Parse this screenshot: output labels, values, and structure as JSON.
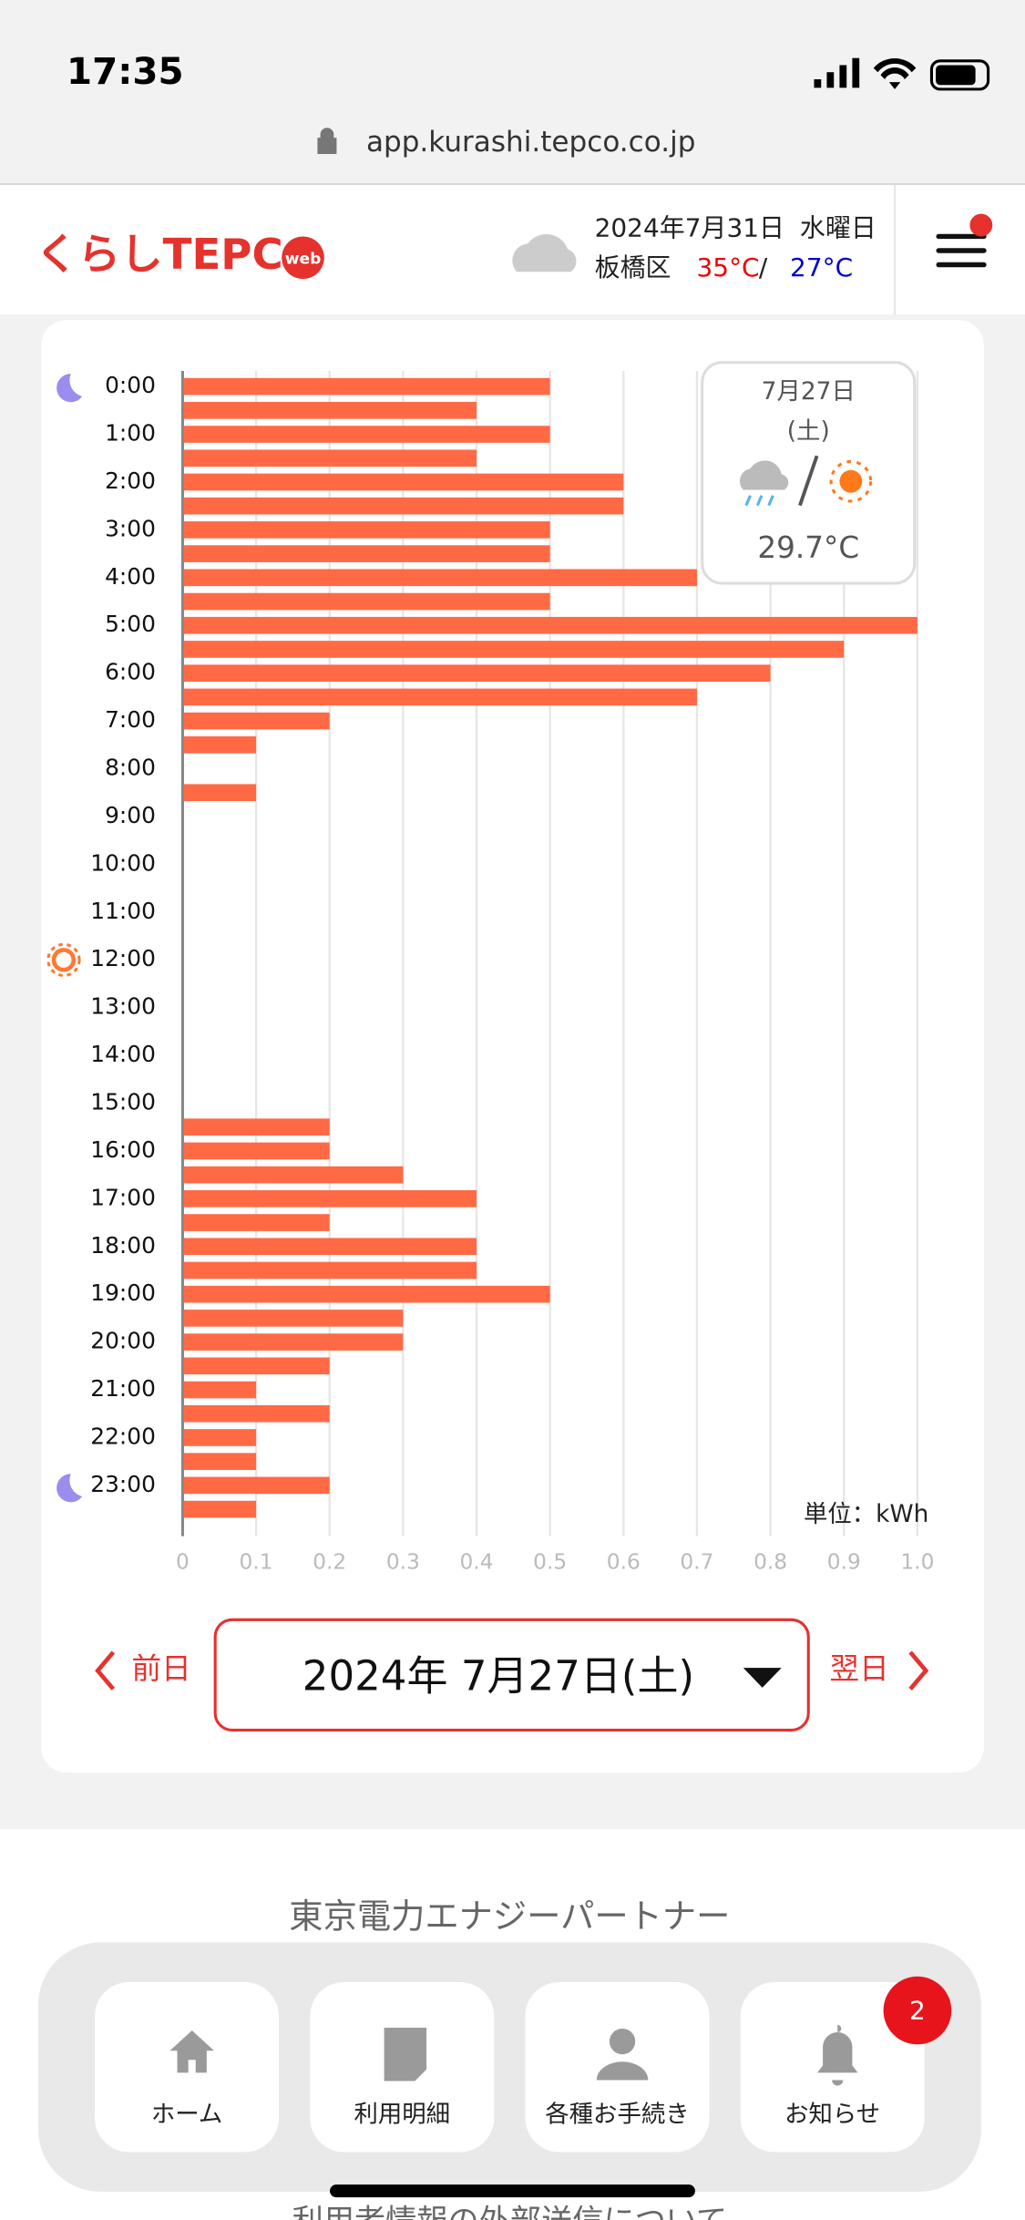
{
  "status_bar": {
    "time": "17:35"
  },
  "browser": {
    "url": "app.kurashi.tepco.co.jp"
  },
  "header": {
    "logo": "くらしTEPCO",
    "logo_badge": "web",
    "date": "2024年7月31日",
    "weekday": "水曜日",
    "area": "板橋区",
    "high": "35°C",
    "separator": "/",
    "low": "27°C"
  },
  "weather_card": {
    "date": "7月27日",
    "weekday": "(土)",
    "temperature": "29.7°C"
  },
  "chart_data": {
    "type": "bar",
    "orientation": "horizontal",
    "color": "#ff6a45",
    "unit_label": "単位：kWh",
    "categories": [
      "0:00",
      null,
      "1:00",
      null,
      "2:00",
      null,
      "3:00",
      null,
      "4:00",
      null,
      "5:00",
      null,
      "6:00",
      null,
      "7:00",
      null,
      "8:00",
      null,
      "9:00",
      null,
      "10:00",
      null,
      "11:00",
      null,
      "12:00",
      null,
      "13:00",
      null,
      "14:00",
      null,
      "15:00",
      null,
      "16:00",
      null,
      "17:00",
      null,
      "18:00",
      null,
      "19:00",
      null,
      "20:00",
      null,
      "21:00",
      null,
      "22:00",
      null,
      "23:00",
      null
    ],
    "values": [
      0.5,
      0.4,
      0.5,
      0.4,
      0.6,
      0.6,
      0.5,
      0.5,
      0.7,
      0.5,
      1.0,
      0.9,
      0.8,
      0.7,
      0.2,
      0.1,
      0,
      0.1,
      0,
      0,
      0,
      0,
      0,
      0,
      0,
      0,
      0,
      0,
      0,
      0,
      0,
      0.2,
      0.2,
      0.3,
      0.4,
      0.2,
      0.4,
      0.4,
      0.5,
      0.3,
      0.3,
      0.2,
      0.1,
      0.2,
      0.1,
      0.1,
      0.2,
      0.1
    ],
    "xlim": [
      0,
      1
    ],
    "xticks": [
      0,
      0.1,
      0.2,
      0.3,
      0.4,
      0.5,
      0.6,
      0.7,
      0.8,
      0.9,
      {
        "value": 1,
        "label": "1.0"
      }
    ],
    "grid": true
  },
  "date_nav": {
    "prev": "前日",
    "current": "2024年 7月27日(土)",
    "next": "翌日"
  },
  "footer": {
    "company": "東京電力エナジーパートナー",
    "notice": "利用者情報の外部送信について"
  },
  "tab_bar": {
    "items": [
      "ホーム",
      "利用明細",
      "各種お手続き",
      "お知らせ"
    ],
    "badge": 2
  }
}
